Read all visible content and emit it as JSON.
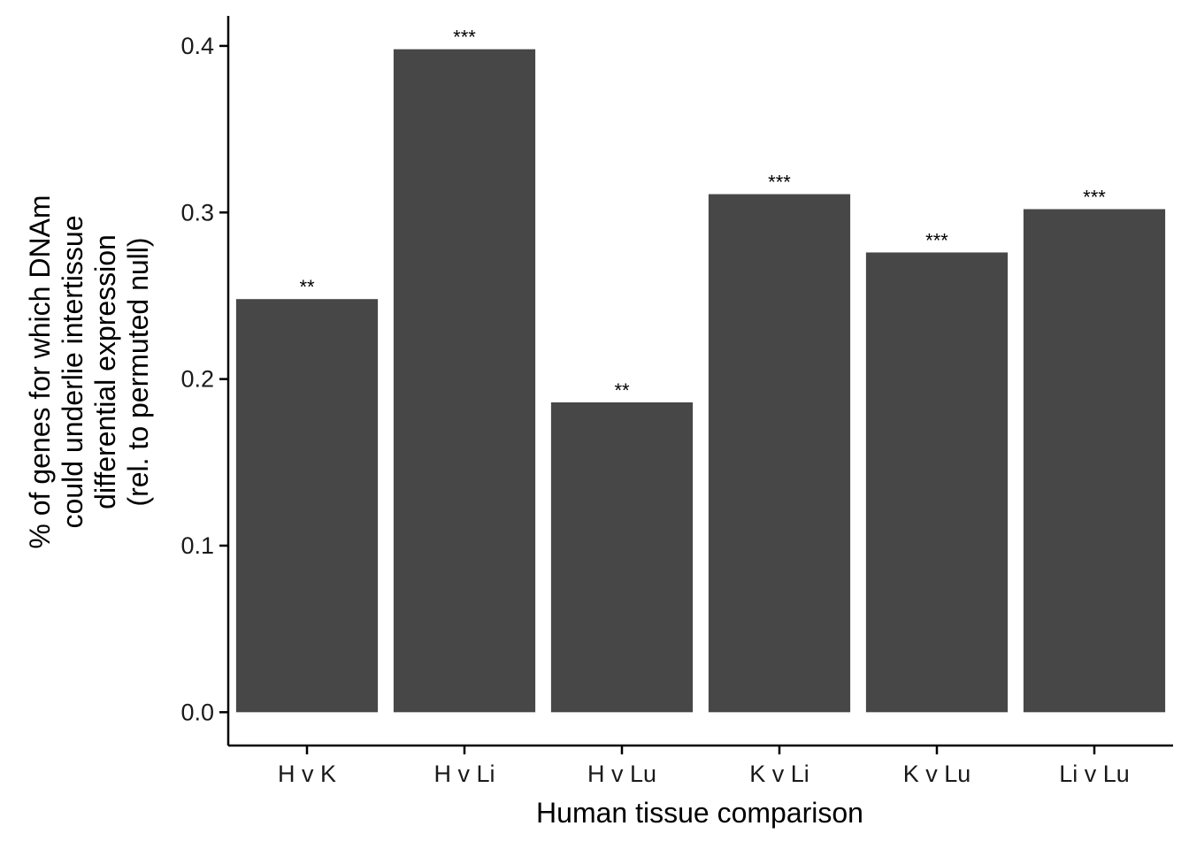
{
  "chart_data": {
    "type": "bar",
    "categories": [
      "H v K",
      "H v Li",
      "H v Lu",
      "K v Li",
      "K v Lu",
      "Li v Lu"
    ],
    "values": [
      0.248,
      0.398,
      0.186,
      0.311,
      0.276,
      0.302
    ],
    "bar_labels": [
      "**",
      "***",
      "**",
      "***",
      "***",
      "***"
    ],
    "yticks": [
      "0.0",
      "0.1",
      "0.2",
      "0.3",
      "0.4"
    ],
    "ytick_values": [
      0.0,
      0.1,
      0.2,
      0.3,
      0.4
    ],
    "xlabel": "Human tissue comparison",
    "ylabel_lines": [
      "% of genes for which DNAm",
      "could underlie intertissue",
      "differential expression",
      "(rel. to permuted null)"
    ],
    "ylim": [
      -0.02,
      0.418
    ],
    "grid": false,
    "legend": "none",
    "bar_color": "#474747",
    "axis_color": "#000000"
  }
}
